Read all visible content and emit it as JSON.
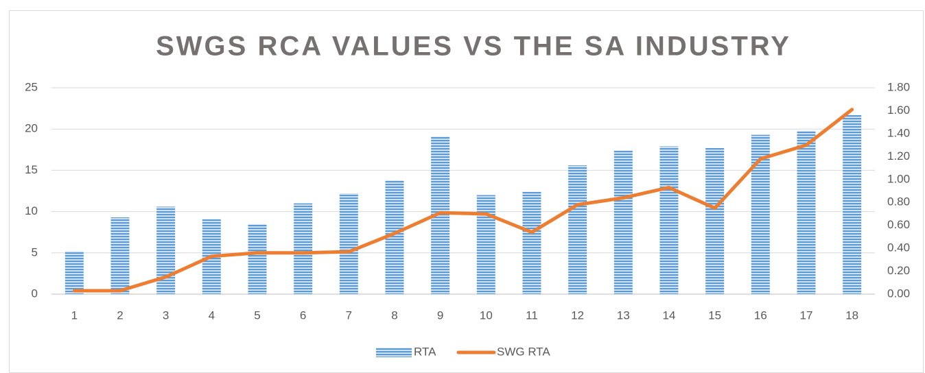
{
  "chart_data": {
    "type": "bar_line",
    "title": "SWGS RCA VALUES VS THE SA INDUSTRY",
    "categories": [
      "1",
      "2",
      "3",
      "4",
      "5",
      "6",
      "7",
      "8",
      "9",
      "10",
      "11",
      "12",
      "13",
      "14",
      "15",
      "16",
      "17",
      "18"
    ],
    "series": [
      {
        "name": "RTA",
        "type": "bar",
        "color": "#5b9bd5",
        "values": [
          5.2,
          9.3,
          10.6,
          9.1,
          8.5,
          11.0,
          12.2,
          13.8,
          19.1,
          12.0,
          12.4,
          15.6,
          17.4,
          17.9,
          17.7,
          19.3,
          19.8,
          21.7
        ]
      },
      {
        "name": "SWG RTA",
        "type": "line",
        "axis": "y2",
        "color": "#ed7d31",
        "values": [
          0.03,
          0.03,
          0.15,
          0.33,
          0.36,
          0.36,
          0.37,
          0.53,
          0.71,
          0.7,
          0.54,
          0.78,
          0.84,
          0.93,
          0.75,
          1.18,
          1.3,
          1.61
        ]
      }
    ],
    "ylim": [
      0,
      25
    ],
    "yticks": [
      0,
      5,
      10,
      15,
      20,
      25
    ],
    "y2lim": [
      0,
      1.8
    ],
    "y2ticks": [
      {
        "value": 0,
        "label": "0.00"
      },
      {
        "value": 0.2,
        "label": "0.20"
      },
      {
        "value": 0.4,
        "label": "0.40"
      },
      {
        "value": 0.6,
        "label": "0.60"
      },
      {
        "value": 0.8,
        "label": "0.80"
      },
      {
        "value": 1.0,
        "label": "1.00"
      },
      {
        "value": 1.2,
        "label": "1.20"
      },
      {
        "value": 1.4,
        "label": "1.40"
      },
      {
        "value": 1.6,
        "label": "1.60"
      },
      {
        "value": 1.8,
        "label": "1.80"
      }
    ],
    "grid": true,
    "legend": "bottom"
  }
}
